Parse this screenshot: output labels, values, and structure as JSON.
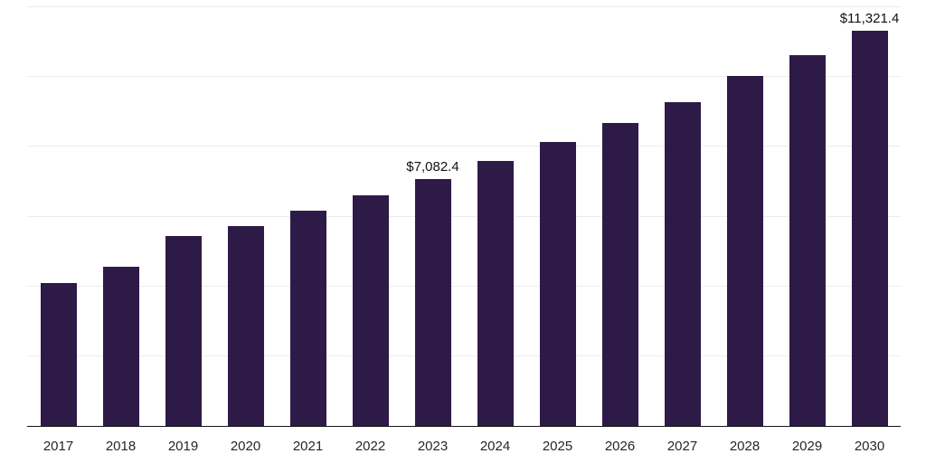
{
  "chart_data": {
    "type": "bar",
    "title": "",
    "xlabel": "",
    "ylabel": "",
    "categories": [
      "2017",
      "2018",
      "2019",
      "2020",
      "2021",
      "2022",
      "2023",
      "2024",
      "2025",
      "2026",
      "2027",
      "2028",
      "2029",
      "2030"
    ],
    "values": [
      4100,
      4550,
      5450,
      5730,
      6160,
      6600,
      7082.4,
      7590,
      8130,
      8690,
      9280,
      10020,
      10630,
      11321.4
    ],
    "ylim": [
      0,
      12000
    ],
    "gridline_step": 2000,
    "grid": true,
    "legend": "none",
    "bar_color": "#2e1a47",
    "annotations": [
      {
        "category": "2023",
        "text": "$7,082.4"
      },
      {
        "category": "2030",
        "text": "$11,321.4"
      }
    ]
  }
}
